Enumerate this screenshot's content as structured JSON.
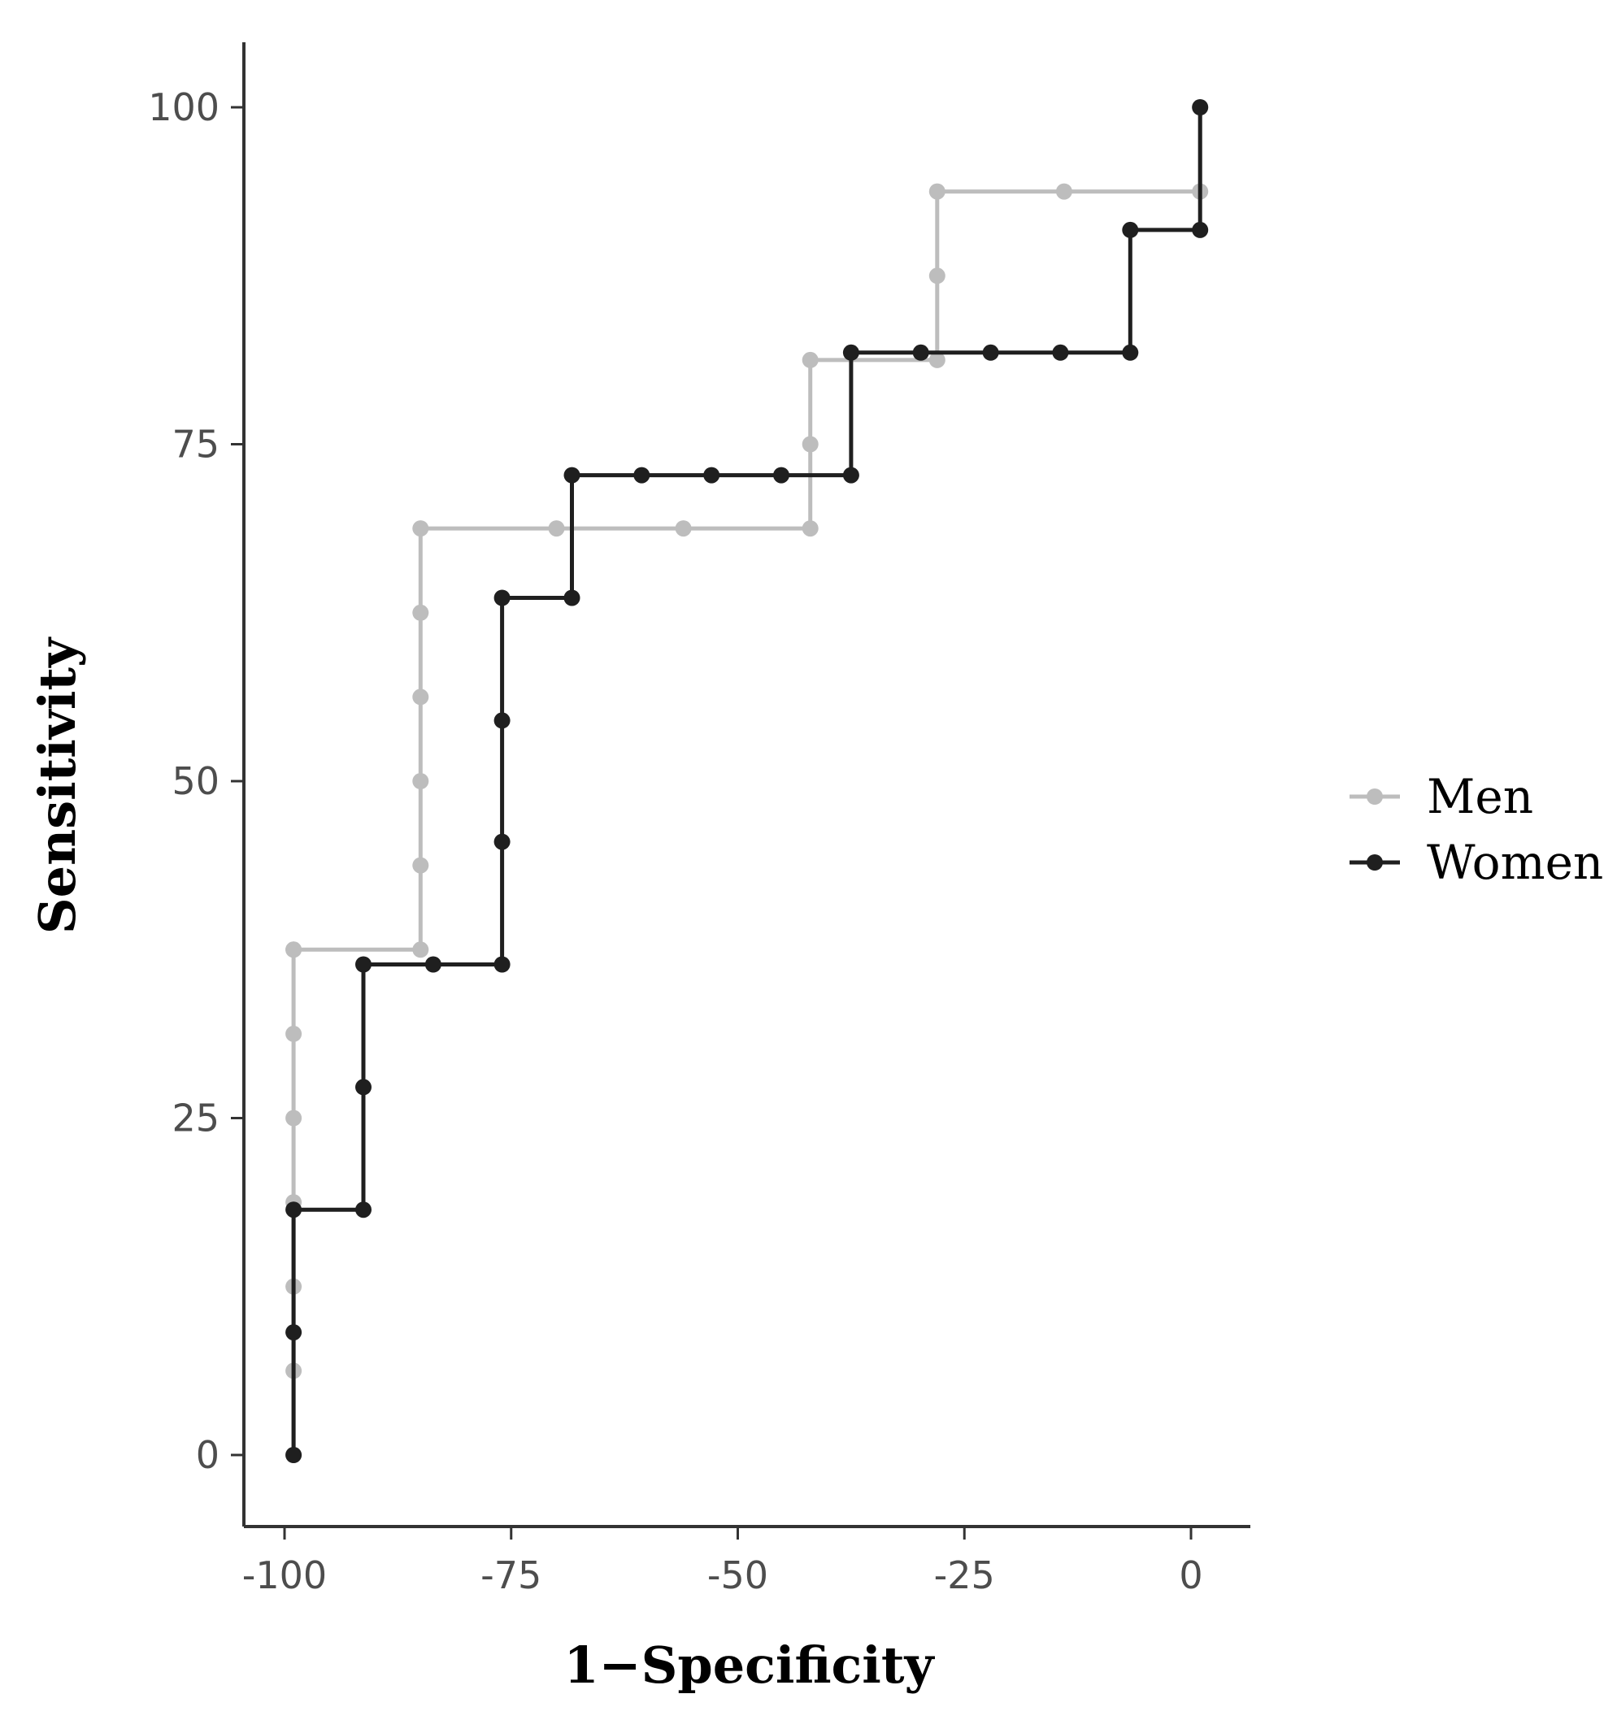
{
  "chart_data": {
    "type": "line",
    "xlabel": "1−Specificity",
    "ylabel": "Sensitivity",
    "xlim": [
      -103,
      4
    ],
    "ylim": [
      -4.5,
      105
    ],
    "xticks": [
      -100,
      -75,
      -50,
      -25,
      0
    ],
    "yticks": [
      0,
      25,
      50,
      75,
      100
    ],
    "x_tick_labels": [
      "-100",
      "-75",
      "-50",
      "-25",
      "0"
    ],
    "y_tick_labels": [
      "0",
      "25",
      "50",
      "75",
      "100"
    ],
    "legend": {
      "position": "right",
      "entries": [
        "Men",
        "Women"
      ]
    },
    "series": [
      {
        "name": "Men",
        "color": "#bdbdbd",
        "x": [
          -99,
          -99,
          -99,
          -99,
          -99,
          -99,
          -99,
          -99,
          -85,
          -85,
          -85,
          -85,
          -85,
          -85,
          -70,
          -56,
          -42,
          -42,
          -42,
          -28,
          -28,
          -28,
          -14,
          1,
          1
        ],
        "y": [
          0,
          6.25,
          12.5,
          18.75,
          25,
          31.25,
          37.5,
          37.5,
          37.5,
          43.75,
          50,
          56.25,
          62.5,
          68.75,
          68.75,
          68.75,
          68.75,
          75,
          81.25,
          81.25,
          87.5,
          93.75,
          93.75,
          93.75,
          100
        ]
      },
      {
        "name": "Women",
        "color": "#1f1f1f",
        "x": [
          -99,
          -99,
          -99,
          -91.3,
          -91.3,
          -91.3,
          -83.6,
          -76,
          -76,
          -76,
          -76,
          -68.3,
          -68.3,
          -60.6,
          -52.9,
          -45.2,
          -37.5,
          -37.5,
          -29.8,
          -22.1,
          -14.4,
          -6.7,
          -6.7,
          1,
          1
        ],
        "y": [
          0,
          9.1,
          18.2,
          18.2,
          27.3,
          36.4,
          36.4,
          36.4,
          45.5,
          54.5,
          63.6,
          63.6,
          72.7,
          72.7,
          72.7,
          72.7,
          72.7,
          81.8,
          81.8,
          81.8,
          81.8,
          81.8,
          90.9,
          90.9,
          100
        ]
      }
    ]
  }
}
